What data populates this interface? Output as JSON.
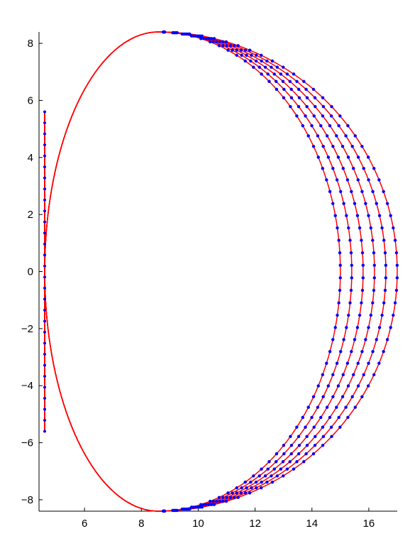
{
  "chart_data": {
    "type": "line",
    "title": "",
    "xlabel": "",
    "ylabel": "",
    "xlim": [
      4.4,
      17.0
    ],
    "ylim": [
      -8.4,
      8.4
    ],
    "x_ticks": [
      6,
      8,
      10,
      12,
      14,
      16
    ],
    "y_ticks": [
      8,
      6,
      4,
      2,
      0,
      -2,
      -4,
      -6,
      -8
    ],
    "x_tick_labels": [
      "6",
      "8",
      "10",
      "12",
      "14",
      "16"
    ],
    "y_tick_labels": [
      "8",
      "6",
      "4",
      "2",
      "0",
      "−2",
      "−4",
      "−6",
      "−8"
    ],
    "grid": false,
    "legend": "none",
    "curve_color": "#ff0000",
    "marker_color": "#0000ff",
    "shape": {
      "left_wall_x": 4.6,
      "top_y": 8.4,
      "bottom_y": -8.4,
      "apex_x": 8.6
    },
    "series": [
      {
        "outer_x": 15.0,
        "points": 60
      },
      {
        "outer_x": 15.4,
        "points": 60
      },
      {
        "outer_x": 15.8,
        "points": 60
      },
      {
        "outer_x": 16.2,
        "points": 60
      },
      {
        "outer_x": 16.6,
        "points": 60
      },
      {
        "outer_x": 17.0,
        "points": 60
      }
    ]
  }
}
